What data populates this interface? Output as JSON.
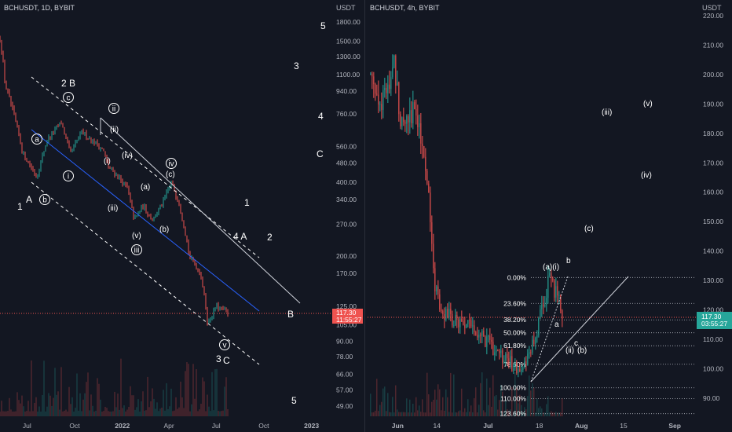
{
  "panels": [
    {
      "symbol_line": "BCHUSDT, 1D, BYBIT",
      "axis_unit": "USDT",
      "price_tag": "117.30",
      "countdown": "11:55:27",
      "y_ticks": [
        "1800.00",
        "1500.00",
        "1300.00",
        "1100.00",
        "940.00",
        "760.00",
        "560.00",
        "480.00",
        "400.00",
        "340.00",
        "270.00",
        "200.00",
        "170.00",
        "125.00",
        "105.00",
        "90.00",
        "78.00",
        "66.00",
        "57.00",
        "49.00"
      ],
      "x_ticks": [
        "Jul",
        "Oct",
        "2022",
        "Apr",
        "Jul",
        "Oct",
        "2023"
      ],
      "wave_labels": [
        "5",
        "3",
        "4",
        "C",
        "1",
        "2",
        "4 A",
        "B",
        "5",
        "2 B",
        "1",
        "A",
        "3",
        "C",
        "i",
        "ii",
        "iii",
        "iv",
        "v",
        "a",
        "b",
        "c",
        "(i)",
        "(ii)",
        "(iii)",
        "(iv)",
        "(v)",
        "(a)",
        "(b)",
        "(c)"
      ]
    },
    {
      "symbol_line": "BCHUSDT, 4h, BYBIT",
      "axis_unit": "USDT",
      "price_tag": "117.30",
      "countdown": "03:55:27",
      "y_ticks": [
        "220.00",
        "210.00",
        "200.00",
        "190.00",
        "180.00",
        "170.00",
        "160.00",
        "150.00",
        "140.00",
        "130.00",
        "120.00",
        "110.00",
        "100.00",
        "90.00"
      ],
      "x_ticks": [
        "Jun",
        "14",
        "Jul",
        "18",
        "Aug",
        "15",
        "Sep"
      ],
      "fib_levels": [
        "0.00%",
        "23.60%",
        "38.20%",
        "50.00%",
        "61.80%",
        "78.60%",
        "100.00%",
        "110.00%",
        "123.60%"
      ],
      "wave_labels": [
        "(v)",
        "(iii)",
        "(iv)",
        "(c)",
        "(a)(i)",
        "b",
        "a",
        "c",
        "(ii)",
        "(b)"
      ]
    }
  ],
  "chart_data": [
    {
      "type": "candlestick",
      "title": "BCHUSDT, 1D, BYBIT",
      "ylabel": "USDT",
      "y_scale": "log",
      "ylim": [
        45,
        2000
      ],
      "x_range": [
        "2021-05-10",
        "2023-02-10"
      ],
      "last_price": 117.3,
      "x": [
        "2021-05-10",
        "2021-05-20",
        "2021-06-05",
        "2021-06-22",
        "2021-07-20",
        "2021-08-10",
        "2021-09-05",
        "2021-09-22",
        "2021-10-15",
        "2021-11-05",
        "2021-11-25",
        "2021-12-05",
        "2021-12-20",
        "2022-01-10",
        "2022-01-24",
        "2022-02-10",
        "2022-03-01",
        "2022-03-20",
        "2022-04-05",
        "2022-04-20",
        "2022-05-10",
        "2022-06-01",
        "2022-06-15",
        "2022-07-01",
        "2022-07-15",
        "2022-07-25"
      ],
      "close": [
        1550,
        1000,
        760,
        530,
        420,
        600,
        700,
        520,
        640,
        590,
        540,
        460,
        430,
        380,
        280,
        320,
        280,
        330,
        400,
        330,
        200,
        170,
        105,
        125,
        120,
        117.3
      ]
    },
    {
      "type": "candlestick",
      "title": "BCHUSDT, 4h, BYBIT",
      "ylabel": "USDT",
      "ylim": [
        85,
        222
      ],
      "x_range": [
        "2022-05-22",
        "2022-09-08"
      ],
      "last_price": 117.3,
      "x": [
        "2022-05-23",
        "2022-05-27",
        "2022-05-31",
        "2022-06-02",
        "2022-06-06",
        "2022-06-09",
        "2022-06-12",
        "2022-06-13",
        "2022-06-16",
        "2022-06-20",
        "2022-06-26",
        "2022-07-02",
        "2022-07-05",
        "2022-07-08",
        "2022-07-13",
        "2022-07-16",
        "2022-07-19",
        "2022-07-21",
        "2022-07-24",
        "2022-07-26"
      ],
      "close": [
        200,
        190,
        203,
        185,
        188,
        180,
        150,
        128,
        120,
        116,
        114,
        108,
        104,
        102,
        100,
        108,
        120,
        130,
        126,
        117.3
      ],
      "fibonacci": [
        {
          "level": "0.00%",
          "price": 131.0
        },
        {
          "level": "23.60%",
          "price": 122.2
        },
        {
          "level": "38.20%",
          "price": 116.6
        },
        {
          "level": "50.00%",
          "price": 112.2
        },
        {
          "level": "61.80%",
          "price": 107.8
        },
        {
          "level": "78.60%",
          "price": 101.5
        },
        {
          "level": "100.00%",
          "price": 93.5
        },
        {
          "level": "110.00%",
          "price": 89.8
        },
        {
          "level": "123.60%",
          "price": 84.7
        }
      ]
    }
  ],
  "colors": {
    "background": "#131722",
    "up": "#26a69a",
    "down": "#ef5350",
    "text": "#ffffff",
    "axis_text": "#b2b5be",
    "last_price_line": "#ef5350"
  }
}
